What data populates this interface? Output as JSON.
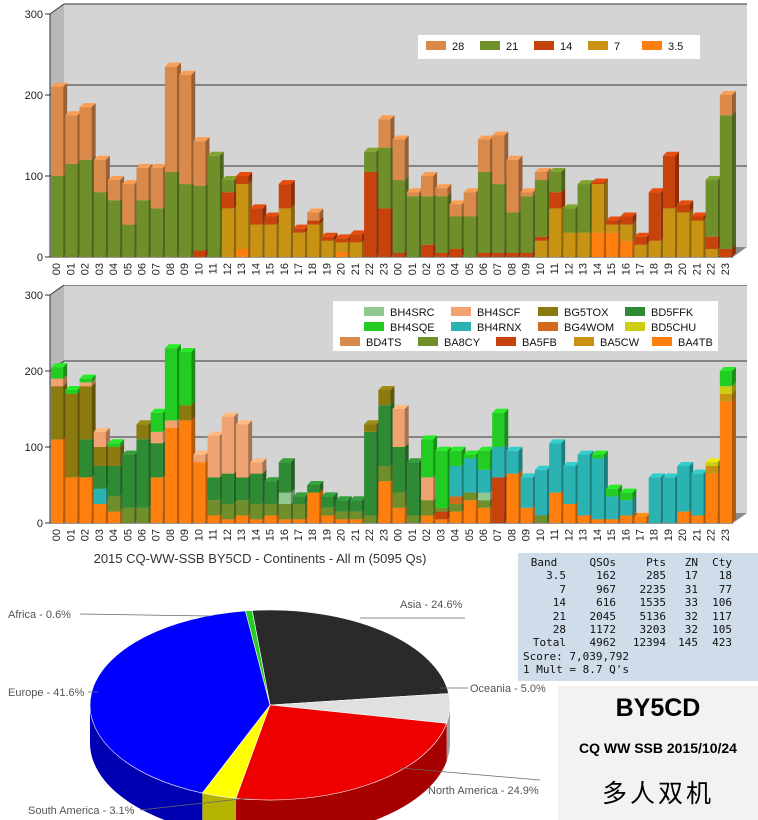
{
  "colors": {
    "b28": "#d9894a",
    "b21": "#6f8f2a",
    "b14": "#c8430c",
    "b7": "#c89212",
    "b35": "#ff7f0e",
    "BH4SRC": "#8fc98f",
    "BH4SCF": "#f0a370",
    "BG5TOX": "#8a7a10",
    "BD5FFK": "#2e8b34",
    "BH4SQE": "#22cc22",
    "BH4RNX": "#2bb3b3",
    "BG4WOM": "#d26a1c",
    "BD5CHU": "#cccc11",
    "BD4TS": "#d9894a",
    "BA8CY": "#6f8f2a",
    "BA5FB": "#c8430c",
    "BA5CW": "#c89212",
    "BA4TB": "#ff7f0e",
    "asia": "#2a2a2a",
    "oceania": "#e0e0e0",
    "namerica": "#ee0000",
    "samerica": "#ffff00",
    "europe": "#0000ff",
    "africa": "#22cc22"
  },
  "chart_data": [
    {
      "type": "bar",
      "stacked": true,
      "ylim": [
        0,
        300
      ],
      "yticks": [
        "0",
        "100",
        "200",
        "300"
      ],
      "categories": [
        "00",
        "01",
        "02",
        "03",
        "04",
        "05",
        "06",
        "07",
        "08",
        "09",
        "10",
        "11",
        "12",
        "13",
        "14",
        "15",
        "16",
        "17",
        "18",
        "19",
        "20",
        "21",
        "22",
        "23",
        "00",
        "01",
        "02",
        "03",
        "04",
        "05",
        "06",
        "07",
        "08",
        "09",
        "10",
        "11",
        "12",
        "13",
        "14",
        "15",
        "16",
        "17",
        "18",
        "19",
        "20",
        "21",
        "22",
        "23"
      ],
      "legend_position": "top-right",
      "series": [
        {
          "name": "3.5",
          "color_key": "b35",
          "values": [
            0,
            0,
            0,
            0,
            0,
            0,
            0,
            0,
            0,
            0,
            0,
            0,
            0,
            10,
            0,
            0,
            0,
            0,
            0,
            0,
            6,
            0,
            0,
            0,
            0,
            0,
            0,
            0,
            0,
            0,
            0,
            0,
            0,
            0,
            0,
            0,
            0,
            0,
            30,
            30,
            20,
            0,
            0,
            0,
            0,
            0,
            0,
            0
          ]
        },
        {
          "name": "7",
          "color_key": "b7",
          "values": [
            0,
            0,
            0,
            0,
            0,
            0,
            0,
            0,
            0,
            0,
            0,
            0,
            60,
            80,
            40,
            40,
            60,
            30,
            40,
            20,
            12,
            18,
            0,
            0,
            0,
            0,
            0,
            0,
            0,
            0,
            0,
            0,
            0,
            0,
            20,
            60,
            30,
            30,
            60,
            10,
            20,
            15,
            20,
            60,
            55,
            45,
            10,
            0
          ]
        },
        {
          "name": "14",
          "color_key": "b14",
          "values": [
            0,
            0,
            0,
            0,
            0,
            0,
            0,
            0,
            0,
            0,
            8,
            0,
            20,
            10,
            20,
            10,
            30,
            5,
            5,
            5,
            5,
            10,
            105,
            60,
            5,
            0,
            15,
            5,
            10,
            0,
            5,
            5,
            5,
            5,
            5,
            20,
            0,
            0,
            2,
            5,
            10,
            10,
            60,
            65,
            10,
            5,
            15,
            10
          ]
        },
        {
          "name": "21",
          "color_key": "b21",
          "values": [
            100,
            115,
            120,
            80,
            70,
            40,
            70,
            60,
            105,
            90,
            80,
            125,
            15,
            0,
            0,
            0,
            0,
            0,
            0,
            0,
            0,
            0,
            25,
            75,
            90,
            75,
            60,
            70,
            40,
            50,
            100,
            85,
            50,
            70,
            70,
            25,
            30,
            60,
            0,
            0,
            0,
            0,
            0,
            0,
            0,
            0,
            70,
            165
          ]
        },
        {
          "name": "28",
          "color_key": "b28",
          "values": [
            110,
            60,
            65,
            40,
            25,
            50,
            40,
            50,
            130,
            135,
            55,
            0,
            0,
            0,
            0,
            0,
            0,
            0,
            10,
            0,
            0,
            0,
            0,
            35,
            50,
            5,
            25,
            10,
            15,
            30,
            40,
            60,
            65,
            5,
            10,
            0,
            0,
            0,
            0,
            0,
            0,
            0,
            0,
            0,
            0,
            0,
            0,
            25
          ]
        }
      ]
    },
    {
      "type": "bar",
      "stacked": true,
      "ylim": [
        0,
        300
      ],
      "yticks": [
        "0",
        "100",
        "200",
        "300"
      ],
      "categories": [
        "00",
        "01",
        "02",
        "03",
        "04",
        "05",
        "06",
        "07",
        "08",
        "09",
        "10",
        "11",
        "12",
        "13",
        "14",
        "15",
        "16",
        "17",
        "18",
        "19",
        "20",
        "21",
        "22",
        "23",
        "00",
        "01",
        "02",
        "03",
        "04",
        "05",
        "06",
        "07",
        "08",
        "09",
        "10",
        "11",
        "12",
        "13",
        "14",
        "15",
        "16",
        "17",
        "18",
        "19",
        "20",
        "21",
        "22",
        "23"
      ],
      "legend_position": "top-right",
      "series": [
        {
          "name": "BA4TB",
          "color_key": "BA4TB",
          "values": [
            110,
            60,
            60,
            25,
            15,
            0,
            0,
            60,
            125,
            135,
            80,
            10,
            5,
            10,
            5,
            10,
            5,
            5,
            40,
            10,
            5,
            5,
            0,
            55,
            20,
            0,
            10,
            5,
            15,
            30,
            20,
            0,
            65,
            20,
            0,
            40,
            25,
            10,
            5,
            5,
            10,
            8,
            0,
            0,
            15,
            10,
            65,
            160
          ]
        },
        {
          "name": "BA5CW",
          "color_key": "BA5CW",
          "values": [
            0,
            0,
            0,
            0,
            0,
            0,
            0,
            0,
            0,
            0,
            0,
            0,
            0,
            0,
            0,
            0,
            0,
            0,
            0,
            0,
            0,
            0,
            0,
            0,
            0,
            0,
            0,
            0,
            0,
            0,
            0,
            0,
            0,
            0,
            0,
            0,
            0,
            0,
            0,
            0,
            0,
            0,
            0,
            0,
            0,
            0,
            10,
            10
          ]
        },
        {
          "name": "BA5FB",
          "color_key": "BA5FB",
          "values": [
            0,
            0,
            0,
            0,
            0,
            0,
            0,
            0,
            0,
            0,
            0,
            0,
            0,
            0,
            0,
            0,
            0,
            0,
            0,
            0,
            0,
            0,
            0,
            0,
            0,
            0,
            0,
            10,
            0,
            0,
            0,
            60,
            0,
            0,
            0,
            0,
            0,
            0,
            0,
            0,
            0,
            0,
            0,
            0,
            0,
            0,
            0,
            0
          ]
        },
        {
          "name": "BA8CY",
          "color_key": "BA8CY",
          "values": [
            0,
            0,
            0,
            0,
            20,
            20,
            20,
            0,
            0,
            0,
            0,
            20,
            20,
            20,
            20,
            15,
            20,
            20,
            0,
            10,
            10,
            10,
            10,
            20,
            20,
            10,
            20,
            5,
            10,
            10,
            10,
            0,
            0,
            0,
            10,
            0,
            0,
            0,
            0,
            0,
            0,
            0,
            0,
            0,
            0,
            0,
            0,
            0
          ]
        },
        {
          "name": "BD4TS",
          "color_key": "BD4TS",
          "values": [
            0,
            0,
            0,
            0,
            0,
            0,
            0,
            0,
            0,
            0,
            0,
            0,
            0,
            0,
            0,
            0,
            0,
            0,
            0,
            0,
            0,
            0,
            0,
            0,
            0,
            0,
            0,
            0,
            0,
            0,
            0,
            0,
            0,
            0,
            0,
            0,
            0,
            0,
            0,
            0,
            0,
            0,
            0,
            0,
            0,
            0,
            0,
            0
          ]
        },
        {
          "name": "BH4SRC",
          "color_key": "BH4SRC",
          "values": [
            0,
            0,
            0,
            0,
            0,
            0,
            0,
            0,
            0,
            0,
            0,
            0,
            0,
            0,
            0,
            0,
            15,
            0,
            0,
            0,
            0,
            0,
            0,
            0,
            0,
            0,
            0,
            0,
            0,
            0,
            10,
            0,
            0,
            0,
            0,
            0,
            0,
            0,
            0,
            0,
            0,
            0,
            0,
            0,
            0,
            0,
            0,
            0
          ]
        },
        {
          "name": "BD5CHU",
          "color_key": "BD5CHU",
          "values": [
            0,
            0,
            0,
            0,
            0,
            0,
            0,
            0,
            0,
            0,
            0,
            0,
            0,
            0,
            0,
            0,
            0,
            0,
            0,
            0,
            0,
            0,
            0,
            0,
            0,
            0,
            0,
            0,
            0,
            0,
            0,
            0,
            0,
            0,
            0,
            0,
            0,
            0,
            0,
            0,
            0,
            0,
            0,
            0,
            0,
            0,
            5,
            10
          ]
        },
        {
          "name": "BG4WOM",
          "color_key": "BG4WOM",
          "values": [
            0,
            0,
            0,
            0,
            0,
            0,
            0,
            0,
            0,
            0,
            0,
            0,
            0,
            0,
            0,
            0,
            0,
            0,
            0,
            0,
            0,
            0,
            0,
            0,
            0,
            0,
            0,
            0,
            10,
            0,
            0,
            0,
            0,
            0,
            0,
            0,
            0,
            0,
            0,
            0,
            0,
            0,
            0,
            0,
            0,
            0,
            0,
            0
          ]
        },
        {
          "name": "BH4RNX",
          "color_key": "BH4RNX",
          "values": [
            0,
            0,
            0,
            20,
            0,
            0,
            0,
            0,
            0,
            0,
            0,
            0,
            0,
            0,
            0,
            0,
            0,
            0,
            0,
            0,
            0,
            0,
            0,
            0,
            0,
            0,
            0,
            0,
            40,
            45,
            30,
            40,
            30,
            40,
            60,
            65,
            50,
            80,
            80,
            30,
            20,
            0,
            60,
            60,
            60,
            55,
            0,
            0
          ]
        },
        {
          "name": "BD5FFK",
          "color_key": "BD5FFK",
          "values": [
            0,
            0,
            50,
            30,
            40,
            70,
            90,
            45,
            0,
            0,
            0,
            30,
            40,
            30,
            40,
            30,
            40,
            10,
            10,
            15,
            15,
            15,
            110,
            80,
            60,
            70,
            0,
            0,
            0,
            0,
            0,
            0,
            0,
            0,
            0,
            0,
            0,
            0,
            0,
            0,
            0,
            0,
            0,
            0,
            0,
            0,
            0,
            0
          ]
        },
        {
          "name": "BG5TOX",
          "color_key": "BG5TOX",
          "values": [
            70,
            110,
            70,
            25,
            25,
            0,
            20,
            0,
            0,
            20,
            0,
            0,
            0,
            0,
            0,
            0,
            0,
            0,
            0,
            0,
            0,
            0,
            10,
            20,
            0,
            0,
            0,
            0,
            0,
            0,
            0,
            0,
            0,
            0,
            0,
            0,
            0,
            0,
            0,
            0,
            0,
            0,
            0,
            0,
            0,
            0,
            0,
            0
          ]
        },
        {
          "name": "BH4SCF",
          "color_key": "BH4SCF",
          "values": [
            10,
            0,
            5,
            20,
            0,
            0,
            0,
            15,
            10,
            0,
            10,
            55,
            75,
            70,
            15,
            0,
            0,
            0,
            0,
            0,
            0,
            0,
            0,
            0,
            50,
            0,
            30,
            0,
            0,
            0,
            0,
            0,
            0,
            0,
            0,
            0,
            0,
            0,
            0,
            0,
            0,
            0,
            0,
            0,
            0,
            0,
            0,
            0
          ]
        },
        {
          "name": "BH4SQE",
          "color_key": "BH4SQE",
          "values": [
            15,
            5,
            5,
            0,
            5,
            0,
            0,
            25,
            95,
            70,
            0,
            0,
            0,
            0,
            0,
            0,
            0,
            0,
            0,
            0,
            0,
            0,
            0,
            0,
            0,
            0,
            50,
            75,
            20,
            5,
            25,
            45,
            0,
            0,
            0,
            0,
            0,
            0,
            5,
            10,
            10,
            0,
            0,
            0,
            0,
            0,
            0,
            20
          ]
        }
      ]
    },
    {
      "type": "pie",
      "title": "2015 CQ-WW-SSB BY5CD - Continents - All m (5095 Qs)",
      "slices": [
        {
          "name": "Asia",
          "label": "Asia - 24.6%",
          "value": 24.6,
          "color_key": "asia"
        },
        {
          "name": "Oceania",
          "label": "Oceania - 5.0%",
          "value": 5.0,
          "color_key": "oceania"
        },
        {
          "name": "North America",
          "label": "North America - 24.9%",
          "value": 24.9,
          "color_key": "namerica"
        },
        {
          "name": "South America",
          "label": "South America - 3.1%",
          "value": 3.1,
          "color_key": "samerica"
        },
        {
          "name": "Europe",
          "label": "Europe - 41.6%",
          "value": 41.6,
          "color_key": "europe"
        },
        {
          "name": "Africa",
          "label": "Africa - 0.6%",
          "value": 0.6,
          "color_key": "africa"
        }
      ]
    }
  ],
  "score_table": {
    "headers": [
      "Band",
      "QSOs",
      "Pts",
      "ZN",
      "Cty"
    ],
    "rows": [
      [
        "3.5",
        "162",
        "285",
        "17",
        "18"
      ],
      [
        "7",
        "967",
        "2235",
        "31",
        "77"
      ],
      [
        "14",
        "616",
        "1535",
        "33",
        "106"
      ],
      [
        "21",
        "2045",
        "5136",
        "32",
        "117"
      ],
      [
        "28",
        "1172",
        "3203",
        "32",
        "105"
      ],
      [
        "Total",
        "4962",
        "12394",
        "145",
        "423"
      ]
    ],
    "score_line": "Score: 7,039,792",
    "mult_line": "1 Mult = 8.7 Q's"
  },
  "info": {
    "callsign": "BY5CD",
    "contest": "CQ WW SSB 2015/10/24",
    "category": "多人双机"
  }
}
